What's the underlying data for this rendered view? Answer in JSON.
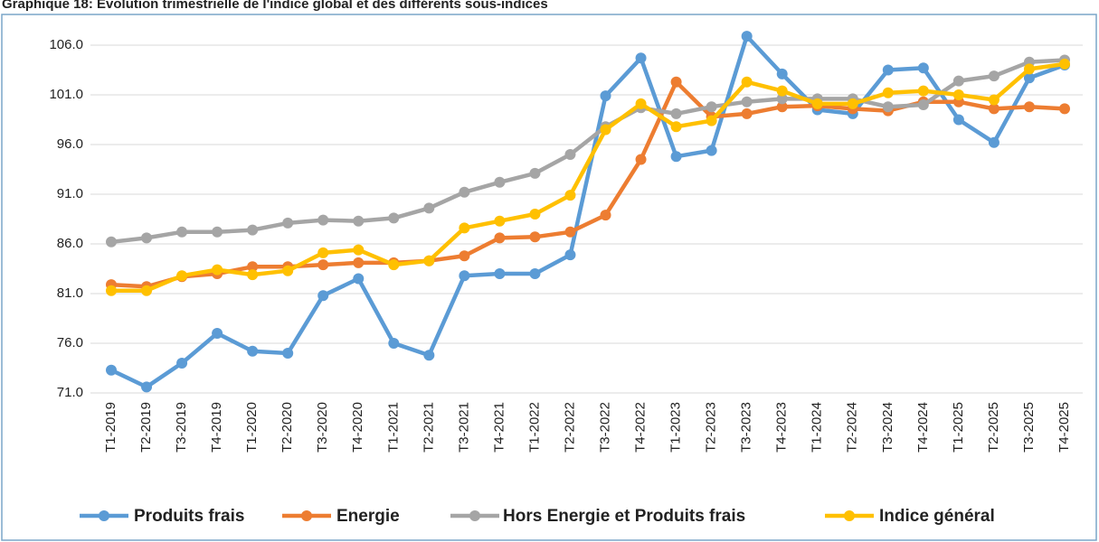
{
  "chart_data": {
    "type": "line",
    "title": "Graphique 18: Evolution trimestrielle de l'indice global et des différents sous-indices",
    "categories": [
      "T1-2019",
      "T2-2019",
      "T3-2019",
      "T4-2019",
      "T1-2020",
      "T2-2020",
      "T3-2020",
      "T4-2020",
      "T1-2021",
      "T2-2021",
      "T3-2021",
      "T4-2021",
      "T1-2022",
      "T2-2022",
      "T3-2022",
      "T4-2022",
      "T1-2023",
      "T2-2023",
      "T3-2023",
      "T4-2023",
      "T1-2024",
      "T2-2024",
      "T3-2024",
      "T4-2024",
      "T1-2025",
      "T2-2025",
      "T3-2025",
      "T4-2025"
    ],
    "series": [
      {
        "name": "Produits frais",
        "color": "#5b9bd5",
        "values": [
          73.3,
          71.6,
          74.0,
          77.0,
          75.2,
          75.0,
          80.8,
          82.5,
          76.0,
          74.8,
          82.8,
          83.0,
          83.0,
          84.9,
          100.9,
          104.7,
          94.8,
          95.4,
          106.9,
          103.1,
          99.5,
          99.1,
          103.5,
          103.7,
          98.5,
          96.2,
          102.7,
          104.0
        ]
      },
      {
        "name": "Energie",
        "color": "#ed7d31",
        "values": [
          81.9,
          81.7,
          82.7,
          83.0,
          83.7,
          83.7,
          83.9,
          84.1,
          84.1,
          84.3,
          84.8,
          86.6,
          86.7,
          87.2,
          88.9,
          94.5,
          102.3,
          98.8,
          99.1,
          99.8,
          99.9,
          99.6,
          99.4,
          100.3,
          100.3,
          99.6,
          99.8,
          99.6
        ]
      },
      {
        "name": "Hors Energie et Produits frais",
        "color": "#a5a5a5",
        "values": [
          86.2,
          86.6,
          87.2,
          87.2,
          87.4,
          88.1,
          88.4,
          88.3,
          88.6,
          89.6,
          91.2,
          92.2,
          93.1,
          95.0,
          97.8,
          99.7,
          99.1,
          99.8,
          100.3,
          100.6,
          100.6,
          100.6,
          99.8,
          100.0,
          102.4,
          102.9,
          104.3,
          104.5
        ]
      },
      {
        "name": "Indice général",
        "color": "#ffc000",
        "values": [
          81.3,
          81.3,
          82.8,
          83.4,
          82.9,
          83.3,
          85.1,
          85.4,
          83.9,
          84.3,
          87.6,
          88.3,
          89.0,
          90.9,
          97.5,
          100.1,
          97.8,
          98.4,
          102.3,
          101.4,
          100.1,
          100.1,
          101.2,
          101.4,
          101.0,
          100.5,
          103.6,
          104.1
        ]
      }
    ],
    "ylim": [
      71,
      108
    ],
    "yticks": [
      {
        "value": 71,
        "label": "71.0"
      },
      {
        "value": 76,
        "label": "76.0"
      },
      {
        "value": 81,
        "label": "81.0"
      },
      {
        "value": 86,
        "label": "86.0"
      },
      {
        "value": 91,
        "label": "91.0"
      },
      {
        "value": 96,
        "label": "96.0"
      },
      {
        "value": 101,
        "label": "101.0"
      },
      {
        "value": 106,
        "label": "106.0"
      }
    ],
    "grid": true
  }
}
